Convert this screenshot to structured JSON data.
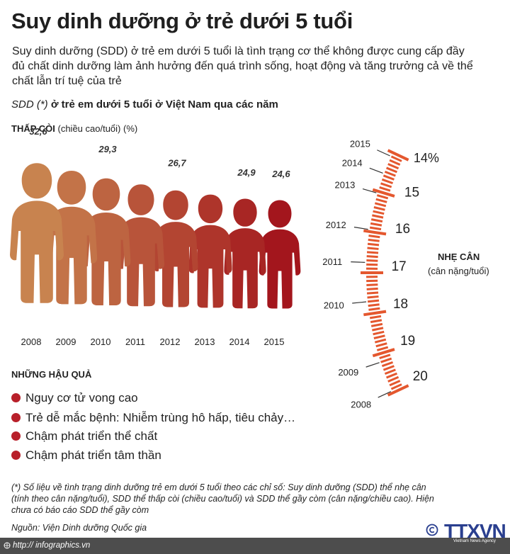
{
  "title": "Suy dinh dưỡng ở trẻ dưới 5 tuổi",
  "intro": "Suy dinh dưỡng (SDD) ở trẻ em dưới 5 tuổi là tình trạng cơ thể không được cung cấp đầy đủ chất dinh dưỡng làm ảnh hưởng đến quá trình sống, hoạt động và tăng trưởng cả về thể chất lẫn trí tuệ của trẻ",
  "chart_heading_prefix": "SDD (*)",
  "chart_heading": " ở trẻ em dưới 5 tuổi ở Việt Nam qua các năm",
  "stunting_label_bold": "THẤP CÒI",
  "stunting_label_rest": " (chiều cao/tuổi) (%)",
  "wasting_label": "NHẸ CÂN",
  "wasting_sublabel": "(cân nặng/tuổi)",
  "consequences_title": "NHỮNG HẬU QUẢ",
  "consequences": [
    "Nguy cơ tử vong cao",
    "Trẻ dễ mắc bệnh: Nhiễm trùng hô hấp, tiêu chảy…",
    "Chậm phát triển thể chất",
    "Chậm phát triển tâm thần"
  ],
  "footnote": "(*) Số liệu về tình trạng dinh dưỡng trẻ em dưới 5 tuổi theo các chỉ số: Suy dinh dưỡng (SDD) thể nhẹ cân (tính theo cân nặng/tuổi), SDD thể thấp còi (chiều cao/tuổi) và SDD thể gầy còm (cân nặng/chiều cao). Hiện chưa có báo cáo SDD thể gầy còm",
  "source": "Nguồn: Viện Dinh dưỡng Quốc gia",
  "website": "http:// infographics.vn",
  "logo": "TTXVN",
  "logo_sub": "Vietnam News Agency",
  "colors": {
    "accent": "#b8202a",
    "gauge": "#e4572e",
    "figure_light": "#c8834f",
    "figure_dark": "#a3161d"
  },
  "chart_data": [
    {
      "type": "bar",
      "title": "THẤP CÒI (chiều cao/tuổi) (%)",
      "categories": [
        "2008",
        "2009",
        "2010",
        "2011",
        "2012",
        "2013",
        "2014",
        "2015"
      ],
      "values": [
        32.6,
        null,
        29.3,
        null,
        26.7,
        null,
        24.9,
        24.6
      ],
      "value_labels": [
        "32,6",
        "",
        "29,3",
        "",
        "26,7",
        "",
        "24,9",
        "24,6"
      ],
      "unit": "%",
      "ylim": [
        0,
        35
      ]
    },
    {
      "type": "gauge",
      "title": "NHẸ CÂN (cân nặng/tuổi)",
      "years": [
        "2015",
        "2014",
        "2013",
        "2012",
        "2011",
        "2010",
        "2009",
        "2008"
      ],
      "scale_labels": [
        "14%",
        "15",
        "16",
        "17",
        "18",
        "19",
        "20"
      ],
      "scale_values": [
        14,
        15,
        16,
        17,
        18,
        19,
        20
      ]
    }
  ]
}
